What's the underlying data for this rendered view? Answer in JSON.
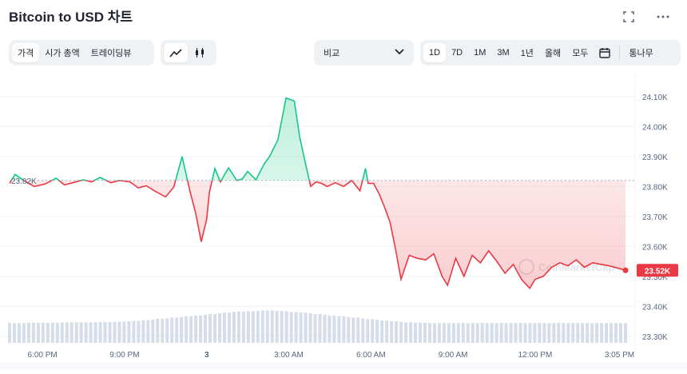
{
  "header": {
    "title": "Bitcoin to USD 차트"
  },
  "toolbar": {
    "view_tabs": [
      "가격",
      "시가 총액",
      "트레이딩뷰"
    ],
    "compare_label": "비교",
    "range_tabs": [
      "1D",
      "7D",
      "1M",
      "3M",
      "1년",
      "올해",
      "모두"
    ],
    "log_label": "통나무",
    "active_view": "가격",
    "active_range": "1D"
  },
  "colors": {
    "up": "#16c784",
    "down": "#ea3943",
    "grid": "#eff2f5",
    "axis_text": "#58667e",
    "volume": "#cfd6e4"
  },
  "chart_data": {
    "type": "area",
    "title": "Bitcoin to USD 차트",
    "ylim": [
      23270,
      24150
    ],
    "y_ticks": [
      23300,
      23400,
      23500,
      23600,
      23700,
      23800,
      23900,
      24000,
      24100
    ],
    "y_tick_labels": [
      "23.30K",
      "23.40K",
      "23.50K",
      "23.60K",
      "23.70K",
      "23.80K",
      "23.90K",
      "24.00K",
      "24.10K"
    ],
    "x_ticks": [
      "6:00 PM",
      "9:00 PM",
      "3",
      "3:00 AM",
      "6:00 AM",
      "9:00 AM",
      "12:00 PM",
      "3:05 PM"
    ],
    "x_tick_hours": [
      1.2,
      4.2,
      7.2,
      10.2,
      13.2,
      16.2,
      19.2,
      22.28
    ],
    "baseline": 23820,
    "baseline_label": "23.82K",
    "current_label": "23.52K",
    "x_hours": [
      0.0,
      0.2,
      0.6,
      0.9,
      1.3,
      1.7,
      2.0,
      2.3,
      2.7,
      3.0,
      3.3,
      3.7,
      4.0,
      4.4,
      4.7,
      5.0,
      5.3,
      5.7,
      6.0,
      6.3,
      6.6,
      6.8,
      7.0,
      7.2,
      7.3,
      7.5,
      7.7,
      8.0,
      8.3,
      8.5,
      8.7,
      9.0,
      9.3,
      9.5,
      9.8,
      10.1,
      10.4,
      10.6,
      10.8,
      11.0,
      11.2,
      11.4,
      11.6,
      11.9,
      12.2,
      12.5,
      12.8,
      13.0,
      13.1,
      13.3,
      13.5,
      13.7,
      13.9,
      14.1,
      14.3,
      14.6,
      14.9,
      15.2,
      15.5,
      15.8,
      16.0,
      16.3,
      16.6,
      16.9,
      17.2,
      17.5,
      17.8,
      18.1,
      18.4,
      18.7,
      19.0,
      19.2,
      19.5,
      19.8,
      20.1,
      20.4,
      20.7,
      21.0,
      21.3,
      21.6,
      21.9,
      22.2,
      22.5
    ],
    "values": [
      23810,
      23840,
      23815,
      23800,
      23808,
      23828,
      23805,
      23812,
      23822,
      23815,
      23830,
      23812,
      23820,
      23815,
      23795,
      23802,
      23785,
      23765,
      23798,
      23900,
      23780,
      23710,
      23615,
      23690,
      23780,
      23860,
      23815,
      23862,
      23820,
      23825,
      23850,
      23822,
      23875,
      23900,
      23955,
      24095,
      24085,
      23965,
      23880,
      23800,
      23815,
      23810,
      23800,
      23812,
      23800,
      23820,
      23785,
      23860,
      23810,
      23810,
      23775,
      23730,
      23680,
      23590,
      23490,
      23570,
      23560,
      23555,
      23575,
      23500,
      23470,
      23560,
      23500,
      23570,
      23545,
      23585,
      23550,
      23510,
      23540,
      23490,
      23460,
      23490,
      23500,
      23530,
      23545,
      23535,
      23555,
      23530,
      23545,
      23540,
      23535,
      23528,
      23520
    ],
    "volume": [
      0.55,
      0.55,
      0.55,
      0.56,
      0.56,
      0.56,
      0.56,
      0.57,
      0.57,
      0.57,
      0.57,
      0.57,
      0.58,
      0.58,
      0.58,
      0.59,
      0.6,
      0.61,
      0.63,
      0.65,
      0.67,
      0.68,
      0.7,
      0.72,
      0.74,
      0.76,
      0.78,
      0.8,
      0.82,
      0.84,
      0.86,
      0.87,
      0.88,
      0.89,
      0.9,
      0.9,
      0.89,
      0.88,
      0.86,
      0.84,
      0.82,
      0.8,
      0.78,
      0.76,
      0.74,
      0.72,
      0.7,
      0.68,
      0.66,
      0.64,
      0.62,
      0.6,
      0.58,
      0.57,
      0.56,
      0.56,
      0.55,
      0.55,
      0.55,
      0.55,
      0.55,
      0.55,
      0.55,
      0.55,
      0.55,
      0.55,
      0.55,
      0.55,
      0.55,
      0.55,
      0.55,
      0.55,
      0.55,
      0.55,
      0.55,
      0.55,
      0.55,
      0.55,
      0.55,
      0.55,
      0.55,
      0.55,
      0.55
    ]
  }
}
